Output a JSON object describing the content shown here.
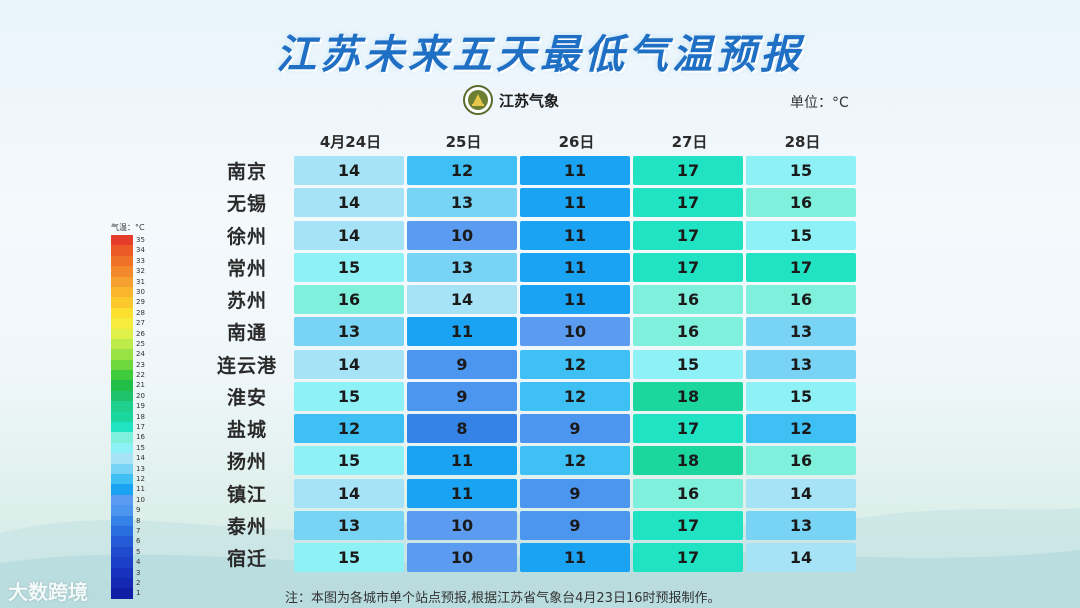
{
  "title": "江苏未来五天最低气温预报",
  "logo": {
    "text": "江苏气象"
  },
  "unit": "单位：°C",
  "note": "注：本图为各城市单个站点预报,根据江苏省气象台4月23日16时预报制作。",
  "watermark": "大数跨境",
  "colors": {
    "8": "#3583e6",
    "9": "#4c96ef",
    "10": "#5c9cf0",
    "11": "#1aa3f2",
    "12": "#3fc0f5",
    "13": "#79d3f4",
    "14": "#a6e3f7",
    "15": "#8ef1f5",
    "16": "#7ff0dc",
    "17": "#20e3c3",
    "18": "#1bd79e"
  },
  "legend": {
    "title": "气温：°C",
    "items": [
      {
        "label": "35",
        "color": "#e63d2a"
      },
      {
        "label": "34",
        "color": "#ec5a26"
      },
      {
        "label": "33",
        "color": "#f07227"
      },
      {
        "label": "32",
        "color": "#f4892b"
      },
      {
        "label": "31",
        "color": "#f6a02f"
      },
      {
        "label": "30",
        "color": "#f9b52c"
      },
      {
        "label": "29",
        "color": "#fbc92b"
      },
      {
        "label": "28",
        "color": "#fde02f"
      },
      {
        "label": "27",
        "color": "#f5ec3e"
      },
      {
        "label": "26",
        "color": "#dff04a"
      },
      {
        "label": "25",
        "color": "#bdeb49"
      },
      {
        "label": "24",
        "color": "#99e245"
      },
      {
        "label": "23",
        "color": "#6fd83d"
      },
      {
        "label": "22",
        "color": "#3fcc3c"
      },
      {
        "label": "21",
        "color": "#22bf48"
      },
      {
        "label": "20",
        "color": "#1fc46a"
      },
      {
        "label": "19",
        "color": "#1fd08f"
      },
      {
        "label": "18",
        "color": "#1bd79e"
      },
      {
        "label": "17",
        "color": "#20e3c3"
      },
      {
        "label": "16",
        "color": "#7ff0dc"
      },
      {
        "label": "15",
        "color": "#8ef1f5"
      },
      {
        "label": "14",
        "color": "#a6e3f7"
      },
      {
        "label": "13",
        "color": "#79d3f4"
      },
      {
        "label": "12",
        "color": "#3fc0f5"
      },
      {
        "label": "11",
        "color": "#1aa3f2"
      },
      {
        "label": "10",
        "color": "#5c9cf0"
      },
      {
        "label": "9",
        "color": "#4c96ef"
      },
      {
        "label": "8",
        "color": "#3583e6"
      },
      {
        "label": "7",
        "color": "#2a6fe0"
      },
      {
        "label": "6",
        "color": "#245cd8"
      },
      {
        "label": "5",
        "color": "#1f4ccf"
      },
      {
        "label": "4",
        "color": "#1b3fc6"
      },
      {
        "label": "3",
        "color": "#1733bd"
      },
      {
        "label": "2",
        "color": "#1428b2"
      },
      {
        "label": "1",
        "color": "#101ea6"
      }
    ]
  },
  "chart_data": {
    "type": "table",
    "title": "江苏未来五天最低气温预报",
    "unit": "°C",
    "columns": [
      "4月24日",
      "25日",
      "26日",
      "27日",
      "28日"
    ],
    "rows": [
      {
        "city": "南京",
        "values": [
          14,
          12,
          11,
          17,
          15
        ]
      },
      {
        "city": "无锡",
        "values": [
          14,
          13,
          11,
          17,
          16
        ]
      },
      {
        "city": "徐州",
        "values": [
          14,
          10,
          11,
          17,
          15
        ]
      },
      {
        "city": "常州",
        "values": [
          15,
          13,
          11,
          17,
          17
        ]
      },
      {
        "city": "苏州",
        "values": [
          16,
          14,
          11,
          16,
          16
        ]
      },
      {
        "city": "南通",
        "values": [
          13,
          11,
          10,
          16,
          13
        ]
      },
      {
        "city": "连云港",
        "values": [
          14,
          9,
          12,
          15,
          13
        ]
      },
      {
        "city": "淮安",
        "values": [
          15,
          9,
          12,
          18,
          15
        ]
      },
      {
        "city": "盐城",
        "values": [
          12,
          8,
          9,
          17,
          12
        ]
      },
      {
        "city": "扬州",
        "values": [
          15,
          11,
          12,
          18,
          16
        ]
      },
      {
        "city": "镇江",
        "values": [
          14,
          11,
          9,
          16,
          14
        ]
      },
      {
        "city": "泰州",
        "values": [
          13,
          10,
          9,
          17,
          13
        ]
      },
      {
        "city": "宿迁",
        "values": [
          15,
          10,
          11,
          17,
          14
        ]
      }
    ]
  }
}
